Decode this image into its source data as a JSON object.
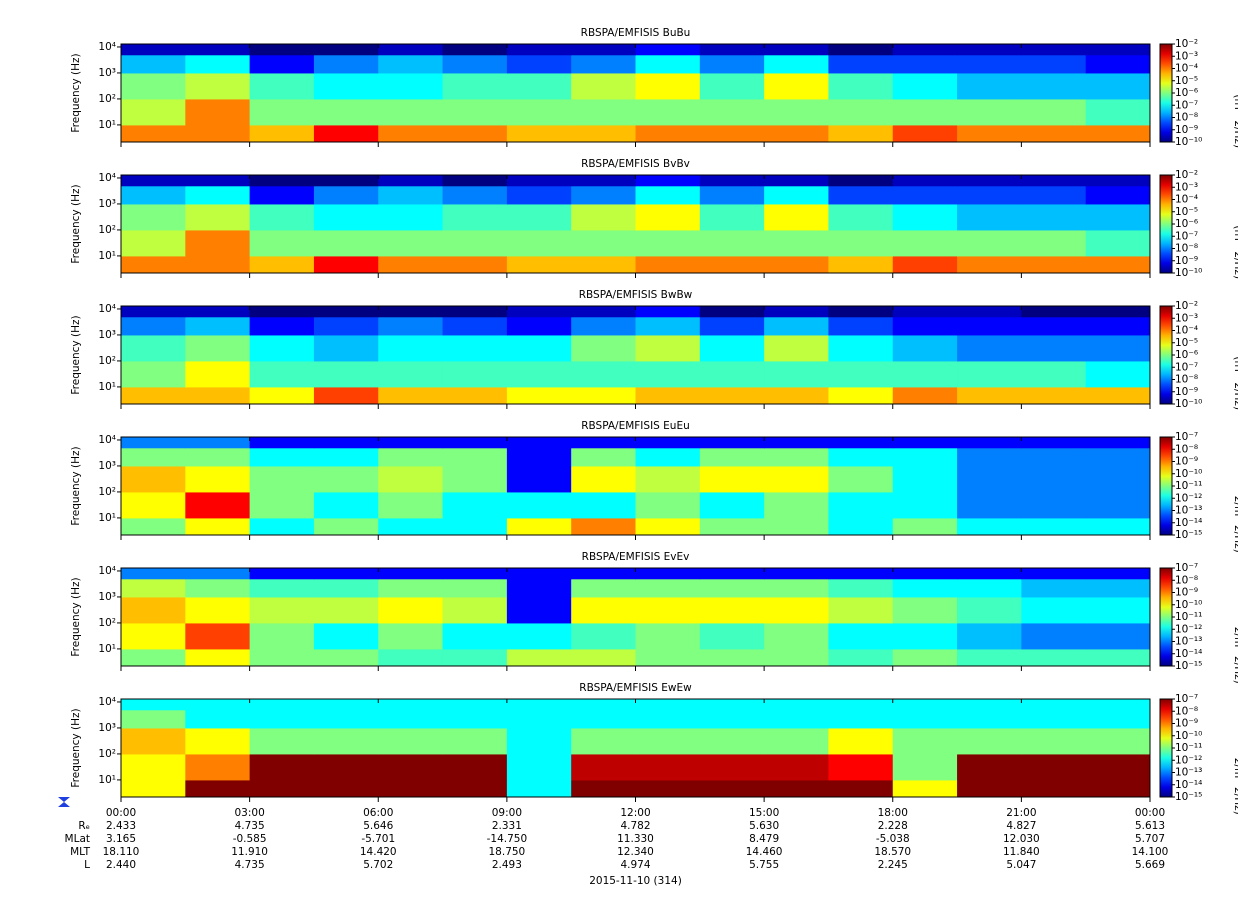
{
  "chart_data": [
    {
      "type": "heatmap",
      "title": "RBSPA/EMFISIS  BuBu",
      "ylabel": "Frequency (Hz)",
      "colorbar_label": "amplitude (nT^2/Hz)",
      "log_y": true,
      "ylim": [
        2.2,
        13000
      ],
      "yticks": [
        {
          "value": 10,
          "label": "10¹"
        },
        {
          "value": 100,
          "label": "10²"
        },
        {
          "value": 1000,
          "label": "10³"
        },
        {
          "value": 10000,
          "label": "10⁴"
        }
      ],
      "ybins": [
        2.2,
        10,
        100,
        1000,
        5000,
        13000
      ],
      "clim": [
        -10,
        -2
      ],
      "cticks": [
        {
          "value": -2,
          "label": "10⁻²"
        },
        {
          "value": -3,
          "label": "10⁻³"
        },
        {
          "value": -4,
          "label": "10⁻⁴"
        },
        {
          "value": -5,
          "label": "10⁻⁵"
        },
        {
          "value": -6,
          "label": "10⁻⁶"
        },
        {
          "value": -7,
          "label": "10⁻⁷"
        },
        {
          "value": -8,
          "label": "10⁻⁸"
        },
        {
          "value": -9,
          "label": "10⁻⁹"
        },
        {
          "value": -10,
          "label": "10⁻¹⁰"
        }
      ],
      "values": [
        [
          -4,
          -4,
          -4.5,
          -3,
          -4,
          -4,
          -4.5,
          -4.5,
          -4,
          -4,
          -4,
          -4.5,
          -3.5,
          -4,
          -4,
          -4
        ],
        [
          -5.5,
          -4,
          -6,
          -6,
          -6,
          -6,
          -6,
          -6,
          -6,
          -6,
          -6,
          -6,
          -6,
          -6,
          -6,
          -6.5
        ],
        [
          -6,
          -5.5,
          -6.5,
          -7,
          -7,
          -6.5,
          -6.5,
          -5.5,
          -5,
          -6.5,
          -5,
          -6.5,
          -7,
          -7.5,
          -7.5,
          -7.5
        ],
        [
          -7.5,
          -7,
          -9,
          -8,
          -7.5,
          -8,
          -8.5,
          -8,
          -7,
          -8,
          -7,
          -8.5,
          -8.5,
          -8.5,
          -8.5,
          -9
        ],
        [
          -9.5,
          -9.5,
          -10,
          -10,
          -9.5,
          -10,
          -9.5,
          -9.5,
          -9,
          -9.5,
          -9.5,
          -10,
          -9.5,
          -9.5,
          -9.5,
          -9.5
        ]
      ]
    },
    {
      "type": "heatmap",
      "title": "RBSPA/EMFISIS  BvBv",
      "ylabel": "Frequency (Hz)",
      "colorbar_label": "amplitude (nT^2/Hz)",
      "log_y": true,
      "ylim": [
        2.2,
        13000
      ],
      "yticks": [
        {
          "value": 10,
          "label": "10¹"
        },
        {
          "value": 100,
          "label": "10²"
        },
        {
          "value": 1000,
          "label": "10³"
        },
        {
          "value": 10000,
          "label": "10⁴"
        }
      ],
      "ybins": [
        2.2,
        10,
        100,
        1000,
        5000,
        13000
      ],
      "clim": [
        -10,
        -2
      ],
      "cticks": [
        {
          "value": -2,
          "label": "10⁻²"
        },
        {
          "value": -3,
          "label": "10⁻³"
        },
        {
          "value": -4,
          "label": "10⁻⁴"
        },
        {
          "value": -5,
          "label": "10⁻⁵"
        },
        {
          "value": -6,
          "label": "10⁻⁶"
        },
        {
          "value": -7,
          "label": "10⁻⁷"
        },
        {
          "value": -8,
          "label": "10⁻⁸"
        },
        {
          "value": -9,
          "label": "10⁻⁹"
        },
        {
          "value": -10,
          "label": "10⁻¹⁰"
        }
      ],
      "values": [
        [
          -4,
          -4,
          -4.5,
          -3,
          -4,
          -4,
          -4.5,
          -4.5,
          -4,
          -4,
          -4,
          -4.5,
          -3.5,
          -4,
          -4,
          -4
        ],
        [
          -5.5,
          -4,
          -6,
          -6,
          -6,
          -6,
          -6,
          -6,
          -6,
          -6,
          -6,
          -6,
          -6,
          -6,
          -6,
          -6.5
        ],
        [
          -6,
          -5.5,
          -6.5,
          -7,
          -7,
          -6.5,
          -6.5,
          -5.5,
          -5,
          -6.5,
          -5,
          -6.5,
          -7,
          -7.5,
          -7.5,
          -7.5
        ],
        [
          -7.5,
          -7,
          -9,
          -8,
          -7.5,
          -8,
          -8.5,
          -8,
          -7,
          -8,
          -7,
          -8.5,
          -8.5,
          -8.5,
          -8.5,
          -9
        ],
        [
          -9.5,
          -9.5,
          -10,
          -10,
          -9.5,
          -10,
          -9.5,
          -9.5,
          -9,
          -9.5,
          -9.5,
          -10,
          -9.5,
          -9.5,
          -9.5,
          -9.5
        ]
      ]
    },
    {
      "type": "heatmap",
      "title": "RBSPA/EMFISIS  BwBw",
      "ylabel": "Frequency (Hz)",
      "colorbar_label": "amplitude (nT^2/Hz)",
      "log_y": true,
      "ylim": [
        2.2,
        13000
      ],
      "yticks": [
        {
          "value": 10,
          "label": "10¹"
        },
        {
          "value": 100,
          "label": "10²"
        },
        {
          "value": 1000,
          "label": "10³"
        },
        {
          "value": 10000,
          "label": "10⁴"
        }
      ],
      "ybins": [
        2.2,
        10,
        100,
        1000,
        5000,
        13000
      ],
      "clim": [
        -10,
        -2
      ],
      "cticks": [
        {
          "value": -2,
          "label": "10⁻²"
        },
        {
          "value": -3,
          "label": "10⁻³"
        },
        {
          "value": -4,
          "label": "10⁻⁴"
        },
        {
          "value": -5,
          "label": "10⁻⁵"
        },
        {
          "value": -6,
          "label": "10⁻⁶"
        },
        {
          "value": -7,
          "label": "10⁻⁷"
        },
        {
          "value": -8,
          "label": "10⁻⁸"
        },
        {
          "value": -9,
          "label": "10⁻⁹"
        },
        {
          "value": -10,
          "label": "10⁻¹⁰"
        }
      ],
      "values": [
        [
          -4.5,
          -4.5,
          -5,
          -3.5,
          -4.5,
          -4.5,
          -5,
          -5,
          -4.5,
          -4.5,
          -4.5,
          -5,
          -4,
          -4.5,
          -4.5,
          -4.5
        ],
        [
          -6,
          -5,
          -6.5,
          -6.5,
          -6.5,
          -6.5,
          -6.5,
          -6.5,
          -6.5,
          -6.5,
          -6.5,
          -6.5,
          -6.5,
          -6.5,
          -6.5,
          -7
        ],
        [
          -6.5,
          -6,
          -7,
          -7.5,
          -7,
          -7,
          -7,
          -6,
          -5.5,
          -7,
          -5.5,
          -7,
          -7.5,
          -8,
          -8,
          -8
        ],
        [
          -8,
          -7.5,
          -9,
          -8.5,
          -8,
          -8.5,
          -9,
          -8,
          -7.5,
          -8.5,
          -7.5,
          -8.5,
          -9,
          -9,
          -9,
          -9
        ],
        [
          -9.5,
          -9.5,
          -10,
          -10,
          -10,
          -10,
          -9.5,
          -9.5,
          -9,
          -10,
          -9.5,
          -10,
          -9.5,
          -9.5,
          -10,
          -10
        ]
      ]
    },
    {
      "type": "heatmap",
      "title": "RBSPA/EMFISIS  EuEu",
      "ylabel": "Frequency (Hz)",
      "colorbar_label": "amplitude (V^2/m^2/Hz)",
      "log_y": true,
      "ylim": [
        2.2,
        13000
      ],
      "yticks": [
        {
          "value": 10,
          "label": "10¹"
        },
        {
          "value": 100,
          "label": "10²"
        },
        {
          "value": 1000,
          "label": "10³"
        },
        {
          "value": 10000,
          "label": "10⁴"
        }
      ],
      "ybins": [
        2.2,
        10,
        100,
        1000,
        5000,
        13000
      ],
      "clim": [
        -15,
        -7
      ],
      "cticks": [
        {
          "value": -7,
          "label": "10⁻⁷"
        },
        {
          "value": -8,
          "label": "10⁻⁸"
        },
        {
          "value": -9,
          "label": "10⁻⁹"
        },
        {
          "value": -10,
          "label": "10⁻¹⁰"
        },
        {
          "value": -11,
          "label": "10⁻¹¹"
        },
        {
          "value": -12,
          "label": "10⁻¹²"
        },
        {
          "value": -13,
          "label": "10⁻¹³"
        },
        {
          "value": -14,
          "label": "10⁻¹⁴"
        },
        {
          "value": -15,
          "label": "10⁻¹⁵"
        }
      ],
      "values": [
        [
          -11,
          -10,
          -12,
          -11,
          -12,
          -12,
          -10,
          -9,
          -10,
          -11,
          -11,
          -12,
          -11,
          -12,
          -12,
          -12
        ],
        [
          -10,
          -8,
          -11,
          -12,
          -11,
          -12,
          -12,
          -12,
          -11,
          -12,
          -11,
          -12,
          -12,
          -13,
          -13,
          -13
        ],
        [
          -9.5,
          -10,
          -11,
          -11,
          -10.5,
          -11,
          -14,
          -10,
          -10.5,
          -10,
          -10,
          -11,
          -12,
          -13,
          -13,
          -13
        ],
        [
          -11,
          -11,
          -12,
          -12,
          -11,
          -11,
          -14,
          -11,
          -12,
          -11,
          -11,
          -12,
          -12,
          -13,
          -13,
          -13
        ],
        [
          -13,
          -13,
          -14,
          -14,
          -14,
          -14,
          -14,
          -14,
          -14,
          -14,
          -14,
          -14,
          -14,
          -14,
          -14,
          -14
        ]
      ]
    },
    {
      "type": "heatmap",
      "title": "RBSPA/EMFISIS  EvEv",
      "ylabel": "Frequency (Hz)",
      "colorbar_label": "amplitude (V^2/m^2/Hz)",
      "log_y": true,
      "ylim": [
        2.2,
        13000
      ],
      "yticks": [
        {
          "value": 10,
          "label": "10¹"
        },
        {
          "value": 100,
          "label": "10²"
        },
        {
          "value": 1000,
          "label": "10³"
        },
        {
          "value": 10000,
          "label": "10⁴"
        }
      ],
      "ybins": [
        2.2,
        10,
        100,
        1000,
        5000,
        13000
      ],
      "clim": [
        -15,
        -7
      ],
      "cticks": [
        {
          "value": -7,
          "label": "10⁻⁷"
        },
        {
          "value": -8,
          "label": "10⁻⁸"
        },
        {
          "value": -9,
          "label": "10⁻⁹"
        },
        {
          "value": -10,
          "label": "10⁻¹⁰"
        },
        {
          "value": -11,
          "label": "10⁻¹¹"
        },
        {
          "value": -12,
          "label": "10⁻¹²"
        },
        {
          "value": -13,
          "label": "10⁻¹³"
        },
        {
          "value": -14,
          "label": "10⁻¹⁴"
        },
        {
          "value": -15,
          "label": "10⁻¹⁵"
        }
      ],
      "values": [
        [
          -11,
          -10,
          -11,
          -11,
          -11.5,
          -11.5,
          -10.5,
          -10.5,
          -11,
          -11,
          -11,
          -11.5,
          -11,
          -11.5,
          -11.5,
          -11.5
        ],
        [
          -10,
          -8.5,
          -11,
          -12,
          -11,
          -12,
          -12,
          -11.5,
          -11,
          -11.5,
          -11,
          -12,
          -12,
          -12.5,
          -13,
          -13
        ],
        [
          -9.5,
          -10,
          -10.5,
          -10.5,
          -10,
          -10.5,
          -14,
          -10,
          -10,
          -10,
          -10,
          -10.5,
          -11,
          -11.5,
          -12,
          -12
        ],
        [
          -10.5,
          -11,
          -11.5,
          -11.5,
          -11,
          -11,
          -14,
          -11,
          -11,
          -11,
          -11,
          -11.5,
          -12,
          -12,
          -12.5,
          -12.5
        ],
        [
          -13,
          -13,
          -14,
          -14,
          -14,
          -14,
          -14,
          -14,
          -14,
          -14,
          -14,
          -14,
          -14,
          -14,
          -14,
          -14
        ]
      ]
    },
    {
      "type": "heatmap",
      "title": "RBSPA/EMFISIS  EwEw",
      "ylabel": "Frequency (Hz)",
      "colorbar_label": "amplitude (V^2/m^2/Hz)",
      "log_y": true,
      "ylim": [
        2.2,
        13000
      ],
      "yticks": [
        {
          "value": 10,
          "label": "10¹"
        },
        {
          "value": 100,
          "label": "10²"
        },
        {
          "value": 1000,
          "label": "10³"
        },
        {
          "value": 10000,
          "label": "10⁴"
        }
      ],
      "ybins": [
        2.2,
        10,
        100,
        1000,
        5000,
        13000
      ],
      "clim": [
        -15,
        -7
      ],
      "cticks": [
        {
          "value": -7,
          "label": "10⁻⁷"
        },
        {
          "value": -8,
          "label": "10⁻⁸"
        },
        {
          "value": -9,
          "label": "10⁻⁹"
        },
        {
          "value": -10,
          "label": "10⁻¹⁰"
        },
        {
          "value": -11,
          "label": "10⁻¹¹"
        },
        {
          "value": -12,
          "label": "10⁻¹²"
        },
        {
          "value": -13,
          "label": "10⁻¹³"
        },
        {
          "value": -14,
          "label": "10⁻¹⁴"
        },
        {
          "value": -15,
          "label": "10⁻¹⁵"
        }
      ],
      "values": [
        [
          -10,
          -7,
          -7,
          -7,
          -7,
          -7,
          -12,
          -7,
          -7,
          -7,
          -7,
          -7,
          -10,
          -7,
          -7,
          -7
        ],
        [
          -10,
          -9,
          -7,
          -7,
          -7,
          -7,
          -12,
          -7.5,
          -7.5,
          -7.5,
          -7.5,
          -8,
          -11,
          -7,
          -7,
          -7
        ],
        [
          -9.5,
          -10,
          -11,
          -11,
          -11,
          -11,
          -12,
          -11,
          -11,
          -11,
          -11,
          -10,
          -11,
          -11,
          -11,
          -11
        ],
        [
          -11,
          -12,
          -12,
          -12,
          -12,
          -12,
          -12,
          -12,
          -12,
          -12,
          -12,
          -12,
          -12,
          -12,
          -12,
          -12
        ],
        [
          -12,
          -12,
          -12,
          -12,
          -12,
          -12,
          -12,
          -12,
          -12,
          -12,
          -12,
          -12,
          -12,
          -12,
          -12,
          -12
        ]
      ]
    }
  ],
  "time_axis": {
    "xlim": [
      0,
      24
    ],
    "xbins": [
      0,
      1.5,
      3,
      4.5,
      6,
      7.5,
      9,
      10.5,
      12,
      13.5,
      15,
      16.5,
      18,
      19.5,
      21,
      22.5,
      24
    ],
    "xticks": [
      {
        "value": 0,
        "label": "00:00"
      },
      {
        "value": 3,
        "label": "03:00"
      },
      {
        "value": 6,
        "label": "06:00"
      },
      {
        "value": 9,
        "label": "09:00"
      },
      {
        "value": 12,
        "label": "12:00"
      },
      {
        "value": 15,
        "label": "15:00"
      },
      {
        "value": 18,
        "label": "18:00"
      },
      {
        "value": 21,
        "label": "21:00"
      },
      {
        "value": 24,
        "label": "00:00"
      }
    ],
    "ephemeris": [
      {
        "name": "Rₑ",
        "values": [
          2.433,
          4.735,
          5.646,
          2.331,
          4.782,
          5.63,
          2.228,
          4.827,
          5.613
        ],
        "value_labels": [
          "2.433",
          "4.735",
          "5.646",
          "2.331",
          "4.782",
          "5.630",
          "2.228",
          "4.827",
          "5.613"
        ]
      },
      {
        "name": "MLat",
        "values": [
          3.165,
          -0.585,
          -5.701,
          -14.75,
          11.33,
          8.479,
          -5.038,
          12.03,
          5.707
        ],
        "value_labels": [
          "3.165",
          "-0.585",
          "-5.701",
          "-14.750",
          "11.330",
          "8.479",
          "-5.038",
          "12.030",
          "5.707"
        ]
      },
      {
        "name": "MLT",
        "values": [
          18.11,
          11.91,
          14.42,
          18.75,
          12.34,
          14.46,
          18.57,
          11.84,
          14.1
        ],
        "value_labels": [
          "18.110",
          "11.910",
          "14.420",
          "18.750",
          "12.340",
          "14.460",
          "18.570",
          "11.840",
          "14.100"
        ]
      },
      {
        "name": "L",
        "values": [
          2.44,
          4.735,
          5.702,
          2.493,
          4.974,
          5.755,
          2.245,
          5.047,
          5.669
        ],
        "value_labels": [
          "2.440",
          "4.735",
          "5.702",
          "2.493",
          "4.974",
          "5.755",
          "2.245",
          "5.047",
          "5.669"
        ]
      }
    ],
    "date": "2015-11-10 (314)"
  }
}
